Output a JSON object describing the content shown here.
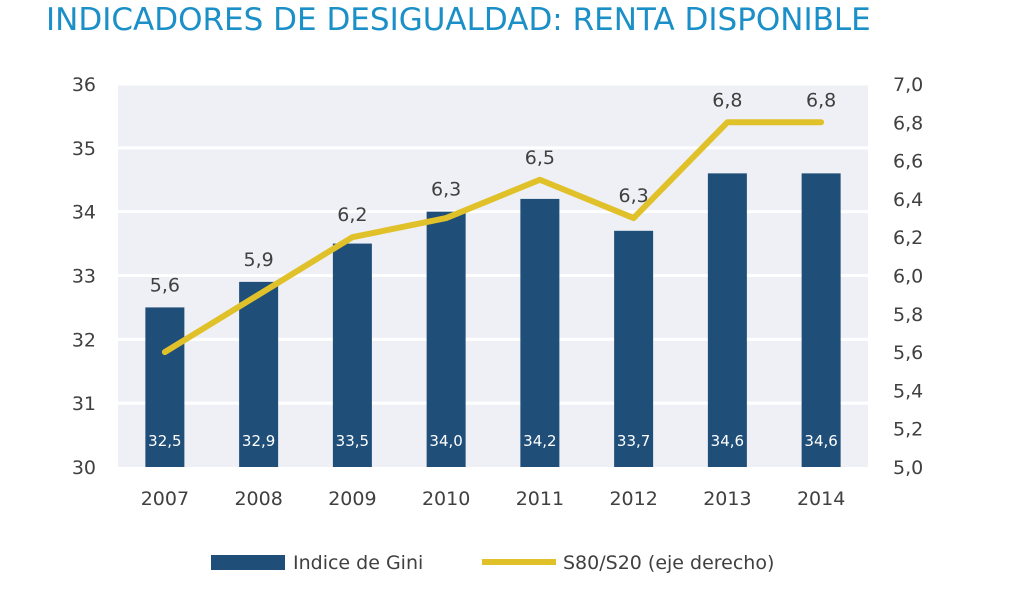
{
  "chart_data": {
    "title": "INDICADORES DE DESIGUALDAD: RENTA DISPONIBLE",
    "type": "bar+line",
    "categories": [
      "2007",
      "2008",
      "2009",
      "2010",
      "2011",
      "2012",
      "2013",
      "2014"
    ],
    "series": [
      {
        "name": "Indice de Gini",
        "type": "bar",
        "axis": "left",
        "values": [
          32.5,
          32.9,
          33.5,
          34.0,
          34.2,
          33.7,
          34.6,
          34.6
        ],
        "labels": [
          "32,5",
          "32,9",
          "33,5",
          "34,0",
          "34,2",
          "33,7",
          "34,6",
          "34,6"
        ],
        "color": "#1f4e79"
      },
      {
        "name": "S80/S20 (eje derecho)",
        "type": "line",
        "axis": "right",
        "values": [
          5.6,
          5.9,
          6.2,
          6.3,
          6.5,
          6.3,
          6.8,
          6.8
        ],
        "labels": [
          "5,6",
          "5,9",
          "6,2",
          "6,3",
          "6,5",
          "6,3",
          "6,8",
          "6,8"
        ],
        "color": "#e0c12a"
      }
    ],
    "y_left": {
      "min": 30,
      "max": 36,
      "ticks": [
        "30",
        "31",
        "32",
        "33",
        "34",
        "35",
        "36"
      ]
    },
    "y_right": {
      "min": 5.0,
      "max": 7.0,
      "ticks": [
        "5,0",
        "5,2",
        "5,4",
        "5,6",
        "5,8",
        "6,0",
        "6,2",
        "6,4",
        "6,6",
        "6,8",
        "7,0"
      ]
    },
    "grid": true,
    "legend_position": "bottom",
    "colors": {
      "plot_background": "#eef0f6",
      "gridline": "#ffffff",
      "title": "#1b8fc7",
      "text": "#404040"
    }
  }
}
